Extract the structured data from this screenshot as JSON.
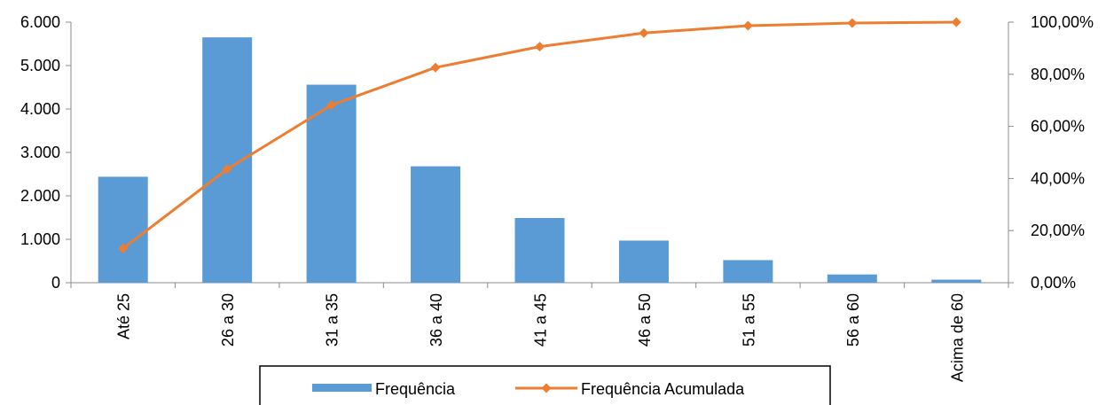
{
  "chart_data": {
    "type": "bar",
    "categories": [
      "Até 25",
      "26 a 30",
      "31 a 35",
      "36 a 40",
      "41 a 45",
      "46 a 50",
      "51 a 55",
      "56 a 60",
      "Acima de 60"
    ],
    "series": [
      {
        "name": "Frequência",
        "type": "bar",
        "axis": "left",
        "color": "#5b9bd5",
        "values": [
          2440,
          5650,
          4560,
          2680,
          1490,
          970,
          520,
          190,
          70
        ]
      },
      {
        "name": "Frequência Acumulada",
        "type": "line",
        "axis": "right",
        "color": "#ed7d31",
        "marker": "diamond",
        "values": [
          13.14,
          43.58,
          68.14,
          82.58,
          90.6,
          95.83,
          98.63,
          99.65,
          100.0
        ]
      }
    ],
    "y_left": {
      "min": 0,
      "max": 6000,
      "ticks": [
        0,
        1000,
        2000,
        3000,
        4000,
        5000,
        6000
      ],
      "tick_labels": [
        "0",
        "1.000",
        "2.000",
        "3.000",
        "4.000",
        "5.000",
        "6.000"
      ]
    },
    "y_right": {
      "min": 0,
      "max": 100,
      "ticks": [
        0,
        20,
        40,
        60,
        80,
        100
      ],
      "tick_labels": [
        "0,00%",
        "20,00%",
        "40,00%",
        "60,00%",
        "80,00%",
        "100,00%"
      ]
    },
    "grid": false,
    "legend": {
      "position": "bottom",
      "entries": [
        "Frequência",
        "Frequência Acumulada"
      ]
    }
  }
}
